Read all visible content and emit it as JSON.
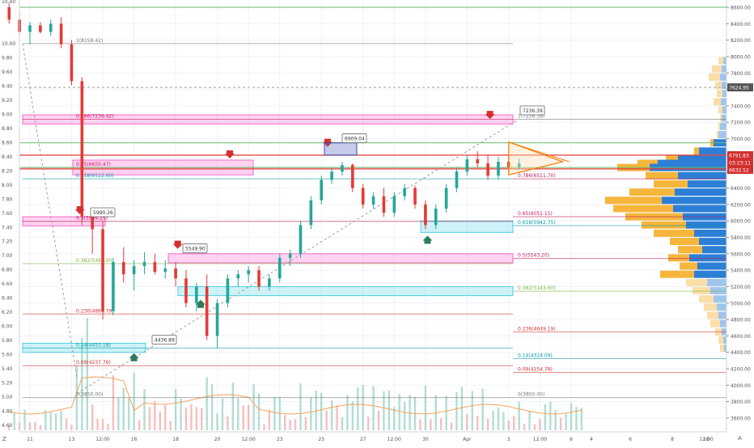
{
  "chart_data": {
    "type": "candlestick",
    "title": "",
    "left_scale": {
      "ticks": [
        "10.40",
        "10.00",
        "9.80",
        "9.60",
        "9.40",
        "9.20",
        "9.00",
        "8.80",
        "8.60",
        "8.40",
        "8.20",
        "8.00",
        "7.80",
        "7.60",
        "7.40",
        "7.20",
        "7.00",
        "6.80",
        "6.60",
        "6.40",
        "6.20",
        "6.00",
        "5.80",
        "5.60",
        "5.40",
        "5.20",
        "5.00",
        "4.80",
        "4.60"
      ]
    },
    "right_scale": {
      "ticks": [
        "8600.00",
        "8400.00",
        "8200.00",
        "8000.00",
        "7800.00",
        "7600.00",
        "7400.00",
        "7200.00",
        "7000.00",
        "6800.00",
        "6600.00",
        "6400.00",
        "6200.00",
        "6000.00",
        "5800.00",
        "5600.00",
        "5400.00",
        "5200.00",
        "5000.00",
        "4800.00",
        "4600.00",
        "4400.00",
        "4200.00",
        "4000.00",
        "3800.00",
        "3600.00"
      ],
      "badges": [
        {
          "value": "7624.95",
          "color": "#555555"
        },
        {
          "value": "6791.83",
          "color": "#d32f2f"
        },
        {
          "value": "03:23:11",
          "color": "#d32f2f"
        },
        {
          "value": "6632.52",
          "color": "#d32f2f"
        }
      ],
      "currency": "USD"
    },
    "x_ticks": [
      {
        "label": "11",
        "day": 11
      },
      {
        "label": "13",
        "day": 13
      },
      {
        "label": "12:00",
        "day": 14.5
      },
      {
        "label": "16",
        "day": 16
      },
      {
        "label": "18",
        "day": 18
      },
      {
        "label": "20",
        "day": 20
      },
      {
        "label": "12:00",
        "day": 21.5
      },
      {
        "label": "23",
        "day": 23
      },
      {
        "label": "25",
        "day": 25
      },
      {
        "label": "27",
        "day": 27
      },
      {
        "label": "12:00",
        "day": 28.5
      },
      {
        "label": "30",
        "day": 30
      },
      {
        "label": "Apr",
        "day": 32
      },
      {
        "label": "3",
        "day": 34
      },
      {
        "label": "12:00",
        "day": 35.5
      },
      {
        "label": "6",
        "day": 37
      }
    ],
    "x_ticks_profile": [
      "4",
      "6",
      "8",
      "10",
      "12:00"
    ],
    "corner_labels": {
      "left": "Z",
      "right": "A"
    },
    "candles": [
      [
        10.0,
        8600,
        8650,
        8400,
        8450
      ],
      [
        10.5,
        8450,
        8550,
        8250,
        8300
      ],
      [
        11.0,
        8300,
        8420,
        8150,
        8380
      ],
      [
        11.5,
        8380,
        8420,
        8280,
        8300
      ],
      [
        12.0,
        8300,
        8450,
        8250,
        8400
      ],
      [
        12.5,
        8400,
        8480,
        8100,
        8150
      ],
      [
        13.0,
        8150,
        8200,
        7650,
        7700
      ],
      [
        13.5,
        7700,
        7750,
        5950,
        6050
      ],
      [
        14.0,
        6050,
        6150,
        5600,
        5900
      ],
      [
        14.5,
        5900,
        6000,
        4800,
        4900
      ],
      [
        15.0,
        4900,
        5550,
        4850,
        5500
      ],
      [
        15.5,
        5500,
        5680,
        5250,
        5350
      ],
      [
        16.0,
        5350,
        5520,
        5150,
        5450
      ],
      [
        16.5,
        5450,
        5620,
        5350,
        5500
      ],
      [
        17.0,
        5500,
        5600,
        5350,
        5380
      ],
      [
        17.5,
        5380,
        5520,
        5300,
        5420
      ],
      [
        18.0,
        5420,
        5500,
        5200,
        5300
      ],
      [
        18.5,
        5300,
        5400,
        4950,
        5000
      ],
      [
        19.0,
        5000,
        5250,
        4900,
        5200
      ],
      [
        19.5,
        5200,
        5350,
        4550,
        4600
      ],
      [
        20.0,
        4600,
        5050,
        4450,
        5000
      ],
      [
        20.5,
        5000,
        5350,
        4950,
        5300
      ],
      [
        21.0,
        5300,
        5400,
        5200,
        5350
      ],
      [
        21.5,
        5350,
        5450,
        5250,
        5400
      ],
      [
        22.0,
        5400,
        5450,
        5150,
        5200
      ],
      [
        22.5,
        5200,
        5350,
        5150,
        5300
      ],
      [
        23.0,
        5300,
        5600,
        5250,
        5550
      ],
      [
        23.5,
        5550,
        5650,
        5450,
        5600
      ],
      [
        24.0,
        5600,
        6000,
        5550,
        5950
      ],
      [
        24.5,
        5950,
        6300,
        5900,
        6250
      ],
      [
        25.0,
        6250,
        6550,
        6200,
        6500
      ],
      [
        25.5,
        6500,
        6650,
        6450,
        6600
      ],
      [
        26.0,
        6600,
        6720,
        6550,
        6680
      ],
      [
        26.5,
        6680,
        6700,
        6350,
        6400
      ],
      [
        27.0,
        6400,
        6450,
        6150,
        6200
      ],
      [
        27.5,
        6200,
        6350,
        6150,
        6300
      ],
      [
        28.0,
        6300,
        6400,
        6050,
        6100
      ],
      [
        28.5,
        6100,
        6350,
        6050,
        6300
      ],
      [
        29.0,
        6300,
        6450,
        6250,
        6400
      ],
      [
        29.5,
        6400,
        6430,
        6150,
        6200
      ],
      [
        30.0,
        6200,
        6250,
        5900,
        5950
      ],
      [
        30.5,
        5950,
        6200,
        5900,
        6150
      ],
      [
        31.0,
        6150,
        6450,
        6100,
        6400
      ],
      [
        31.5,
        6400,
        6650,
        6350,
        6600
      ],
      [
        32.0,
        6600,
        6800,
        6550,
        6750
      ],
      [
        32.5,
        6750,
        6850,
        6650,
        6700
      ],
      [
        33.0,
        6700,
        6800,
        6500,
        6550
      ],
      [
        33.5,
        6550,
        6780,
        6500,
        6720
      ],
      [
        34.0,
        6720,
        6800,
        6600,
        6650
      ],
      [
        34.5,
        6650,
        6760,
        6620,
        6700
      ]
    ],
    "fibonacci_levels": [
      {
        "label": "1(8158.42)",
        "price": 8158.42
      },
      {
        "label": "0.786(7236.42)",
        "price": 7236.42
      },
      {
        "label": "0.65(6650.47)",
        "price": 6650.47
      },
      {
        "label": "0.618(6512.60)",
        "price": 6512.6
      },
      {
        "label": "0.5(5994.25)",
        "price": 5994.25
      },
      {
        "label": "0.382(5480.00)",
        "price": 5480.0
      },
      {
        "label": "0.236(4866.79)",
        "price": 4866.79
      },
      {
        "label": "0.14(4453.18)",
        "price": 4453.18
      },
      {
        "label": "0.09(4237.76)",
        "price": 4237.76
      },
      {
        "label": "0(3850.00)",
        "price": 3850.0
      },
      {
        "label": "1(7236.39)",
        "price": 7236.39
      },
      {
        "label": "0.786(6511.70)",
        "price": 6511.7
      },
      {
        "label": "0.65(6051.15)",
        "price": 6051.15
      },
      {
        "label": "0.618(5942.75)",
        "price": 5942.75
      },
      {
        "label": "0.5(5543.20)",
        "price": 5543.2
      },
      {
        "label": "0.382(5143.60)",
        "price": 5143.6
      },
      {
        "label": "0.236(4649.19)",
        "price": 4649.19
      },
      {
        "label": "0.14(4324.09)",
        "price": 4324.09
      },
      {
        "label": "0.09(4154.78)",
        "price": 4154.78
      },
      {
        "label": "0(3850.00)",
        "price": 3850.0
      }
    ],
    "callouts": [
      {
        "label": "5990.26",
        "price": 5990.26
      },
      {
        "label": "5549.90",
        "price": 5549.9
      },
      {
        "label": "4436.89",
        "price": 4436.89
      },
      {
        "label": "6909.04",
        "price": 6909.04
      },
      {
        "label": "7236.39",
        "price": 7236.39
      }
    ],
    "volume_profile": {
      "price_range": [
        4400,
        8000
      ],
      "up_color": "#f6b63c",
      "down_color": "#2d7fd6"
    },
    "colors": {
      "up": "#26a69a",
      "down": "#e53935",
      "fib_pink": "#ff66cc",
      "fib_cyan": "#4dd0e1",
      "triangle": "#f57c00"
    }
  }
}
